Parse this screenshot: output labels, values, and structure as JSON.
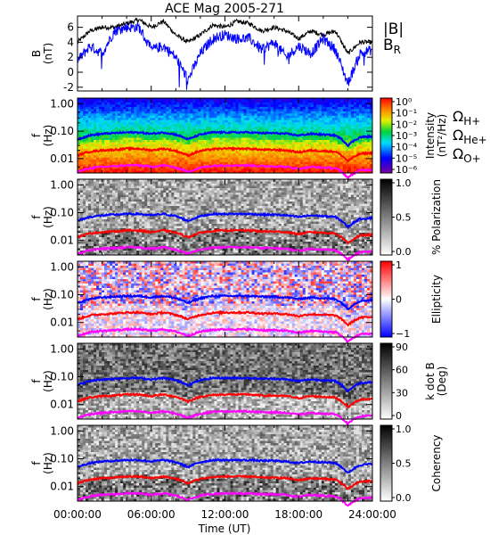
{
  "chart_data": {
    "type": "multi-panel spectrogram",
    "title": "ACE Mag 2005-271",
    "xlabel": "Time (UT)",
    "x_ticks": [
      "00:00:00",
      "06:00:00",
      "12:00:00",
      "18:00:00",
      "24:00:00"
    ],
    "x_range_hours": [
      0,
      24
    ],
    "panels": [
      {
        "id": "field",
        "type": "line",
        "ylabel": "B",
        "ylabel_unit": "(nT)",
        "ylim": [
          -2.5,
          7.5
        ],
        "yticks": [
          "6",
          "4",
          "2",
          "0",
          "-2"
        ],
        "yticks_values": [
          6,
          4,
          2,
          0,
          -2
        ],
        "legend": [
          {
            "label": "|B|",
            "color": "#000000"
          },
          {
            "label": "B",
            "sub": "R",
            "color": "#0000ff"
          }
        ],
        "series": [
          {
            "name": "|B|",
            "color": "#000000",
            "x_hours": [
              0,
              1,
              2,
              3,
              4,
              5,
              6,
              7,
              8,
              9,
              10,
              11,
              12,
              13,
              14,
              15,
              16,
              17,
              18,
              19,
              20,
              21,
              22,
              23,
              24
            ],
            "values": [
              4.0,
              5.5,
              6.0,
              6.0,
              6.5,
              7.0,
              6.0,
              6.8,
              5.0,
              4.0,
              5.0,
              6.3,
              6.0,
              6.8,
              6.5,
              5.5,
              6.0,
              5.5,
              4.5,
              5.5,
              5.0,
              5.5,
              2.5,
              4.0,
              4.0
            ]
          },
          {
            "name": "B_R",
            "color": "#0000ff",
            "x_hours": [
              0,
              1,
              2,
              3,
              4,
              5,
              6,
              7,
              8,
              9,
              10,
              11,
              12,
              13,
              14,
              15,
              16,
              17,
              18,
              19,
              20,
              21,
              22,
              23,
              24
            ],
            "values": [
              1.5,
              3.5,
              2.5,
              5.5,
              6.0,
              6.0,
              3.0,
              3.5,
              2.0,
              -1.0,
              2.5,
              4.5,
              5.0,
              4.5,
              4.5,
              3.0,
              4.0,
              2.0,
              3.5,
              2.5,
              4.5,
              3.0,
              -1.5,
              2.5,
              3.0
            ]
          }
        ]
      },
      {
        "id": "intensity",
        "type": "heatmap",
        "ylabel": "f",
        "ylabel_unit": "(Hz)",
        "yticks": [
          "1.00",
          "0.10",
          "0.01"
        ],
        "colorbar": {
          "colormap": "rainbow",
          "label": "Intensity",
          "label_unit": "(nT²/Hz)",
          "ticks": [
            "10⁰",
            "10⁻¹",
            "10⁻²",
            "10⁻³",
            "10⁻⁴",
            "10⁻⁵",
            "10⁻⁶"
          ]
        }
      },
      {
        "id": "polarization",
        "type": "heatmap",
        "ylabel": "f",
        "ylabel_unit": "(Hz)",
        "yticks": [
          "1.00",
          "0.10",
          "0.01"
        ],
        "colorbar": {
          "colormap": "gray",
          "label": "% Polarization",
          "label_unit": "",
          "ticks": [
            "1.0",
            "0.5",
            "0.0"
          ]
        }
      },
      {
        "id": "ellipticity",
        "type": "heatmap",
        "ylabel": "f",
        "ylabel_unit": "(Hz)",
        "yticks": [
          "1.00",
          "0.10",
          "0.01"
        ],
        "colorbar": {
          "colormap": "bwr",
          "label": "Ellipticity",
          "label_unit": "",
          "ticks": [
            "1",
            "0",
            "−1"
          ]
        }
      },
      {
        "id": "kdotb",
        "type": "heatmap",
        "ylabel": "f",
        "ylabel_unit": "(Hz)",
        "yticks": [
          "1.00",
          "0.10",
          "0.01"
        ],
        "colorbar": {
          "colormap": "gray",
          "label": "k dot B",
          "label_unit": "(Deg)",
          "ticks": [
            "90",
            "60",
            "30",
            "0"
          ]
        }
      },
      {
        "id": "coherency",
        "type": "heatmap",
        "ylabel": "f",
        "ylabel_unit": "(Hz)",
        "yticks": [
          "1.00",
          "0.10",
          "0.01"
        ],
        "colorbar": {
          "colormap": "gray",
          "label": "Coherency",
          "label_unit": "",
          "ticks": [
            "1.0",
            "0.5",
            "0.0"
          ]
        }
      }
    ],
    "gyrofrequency_legend": [
      {
        "label": "Ω",
        "sub": "H+",
        "color": "#0000ff"
      },
      {
        "label": "Ω",
        "sub": "He+",
        "color": "#ff0000"
      },
      {
        "label": "Ω",
        "sub": "O+",
        "color": "#ff00ff"
      }
    ],
    "gyrofrequency_lines": [
      {
        "name": "H+",
        "color": "#0000ff",
        "x_hours": [
          0,
          1,
          2,
          3,
          4,
          5,
          6,
          7,
          8,
          9,
          10,
          11,
          12,
          13,
          14,
          15,
          16,
          17,
          18,
          19,
          20,
          21,
          22,
          23,
          24
        ],
        "f_hz": [
          0.05,
          0.07,
          0.08,
          0.085,
          0.09,
          0.09,
          0.08,
          0.09,
          0.075,
          0.05,
          0.075,
          0.09,
          0.09,
          0.09,
          0.09,
          0.085,
          0.085,
          0.08,
          0.07,
          0.08,
          0.075,
          0.07,
          0.03,
          0.06,
          0.065
        ]
      },
      {
        "name": "He+",
        "color": "#ff0000",
        "x_hours": [
          0,
          1,
          2,
          3,
          4,
          5,
          6,
          7,
          8,
          9,
          10,
          11,
          12,
          13,
          14,
          15,
          16,
          17,
          18,
          19,
          20,
          21,
          22,
          23,
          24
        ],
        "f_hz": [
          0.013,
          0.018,
          0.02,
          0.021,
          0.023,
          0.023,
          0.02,
          0.023,
          0.019,
          0.013,
          0.019,
          0.022,
          0.023,
          0.023,
          0.023,
          0.021,
          0.021,
          0.02,
          0.017,
          0.02,
          0.019,
          0.018,
          0.008,
          0.015,
          0.016
        ]
      },
      {
        "name": "O+",
        "color": "#ff00ff",
        "x_hours": [
          0,
          1,
          2,
          3,
          4,
          5,
          6,
          7,
          8,
          9,
          10,
          11,
          12,
          13,
          14,
          15,
          16,
          17,
          18,
          19,
          20,
          21,
          22,
          23,
          24
        ],
        "f_hz": [
          0.0033,
          0.0045,
          0.005,
          0.0053,
          0.0057,
          0.0057,
          0.005,
          0.0057,
          0.0047,
          0.0033,
          0.0047,
          0.0055,
          0.0057,
          0.0057,
          0.0057,
          0.0053,
          0.0053,
          0.005,
          0.0043,
          0.005,
          0.0047,
          0.0045,
          0.002,
          0.0038,
          0.004
        ]
      }
    ]
  }
}
